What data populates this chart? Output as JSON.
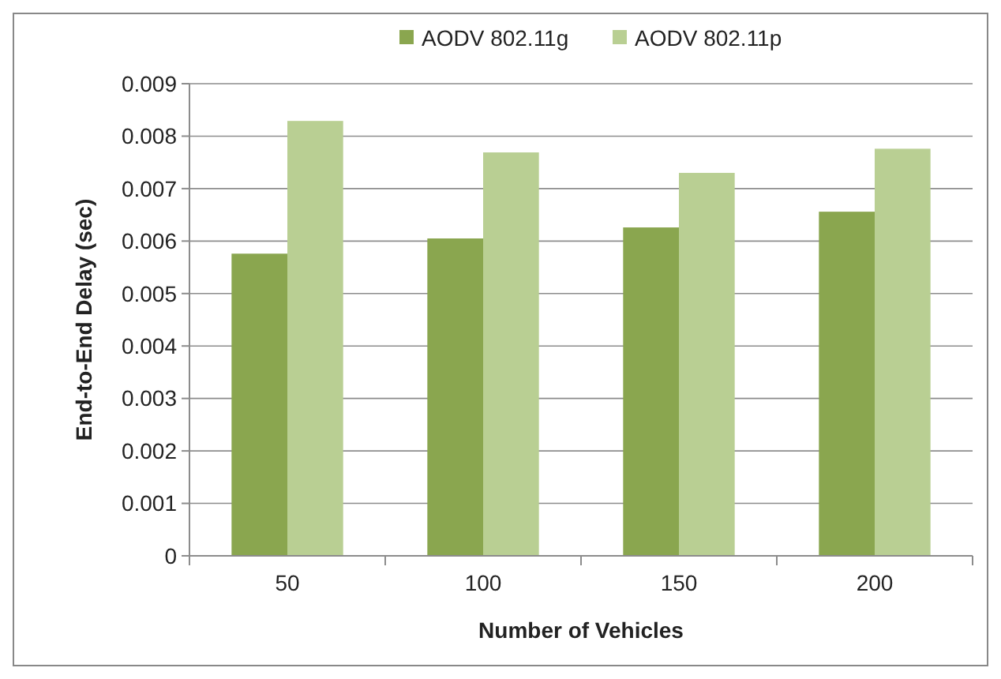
{
  "chart_data": {
    "type": "bar",
    "xlabel": "Number of Vehicles",
    "ylabel": "End-to-End  Delay (sec)",
    "categories": [
      "50",
      "100",
      "150",
      "200"
    ],
    "series": [
      {
        "name": "AODV 802.11g",
        "color": "#8aa64f",
        "values": [
          0.00576,
          0.00605,
          0.00626,
          0.00656
        ]
      },
      {
        "name": "AODV 802.11p",
        "color": "#b9cf93",
        "values": [
          0.00829,
          0.00769,
          0.0073,
          0.00776
        ]
      }
    ],
    "ylim": [
      0,
      0.009
    ],
    "yticks": [
      {
        "value": 0,
        "label": "0"
      },
      {
        "value": 0.001,
        "label": "0.001"
      },
      {
        "value": 0.002,
        "label": "0.002"
      },
      {
        "value": 0.003,
        "label": "0.003"
      },
      {
        "value": 0.004,
        "label": "0.004"
      },
      {
        "value": 0.005,
        "label": "0.005"
      },
      {
        "value": 0.006,
        "label": "0.006"
      },
      {
        "value": 0.007,
        "label": "0.007"
      },
      {
        "value": 0.008,
        "label": "0.008"
      },
      {
        "value": 0.009,
        "label": "0.009"
      }
    ],
    "grid": "y",
    "legend": "top"
  }
}
